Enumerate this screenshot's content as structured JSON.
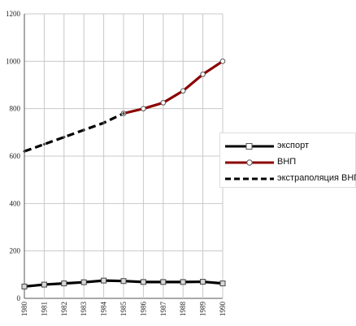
{
  "chart_data": {
    "type": "line",
    "title": "",
    "xlabel": "",
    "ylabel": "",
    "ylim": [
      0,
      1200
    ],
    "y_ticks": [
      0,
      200,
      400,
      600,
      800,
      1000,
      1200
    ],
    "x": [
      "1980",
      "1981",
      "1982",
      "1983",
      "1984",
      "1985",
      "1986",
      "1987",
      "1988",
      "1989",
      "1990"
    ],
    "grid": true,
    "legend_position": "right",
    "series": [
      {
        "name": "экспорт",
        "color": "#000000",
        "style": "solid",
        "marker": "square",
        "values": [
          50,
          58,
          63,
          68,
          75,
          73,
          69,
          69,
          69,
          70,
          63
        ]
      },
      {
        "name": "ВНП",
        "color": "#8b0000",
        "style": "solid",
        "marker": "circle",
        "values": [
          null,
          null,
          null,
          null,
          null,
          780,
          800,
          825,
          875,
          945,
          1000
        ]
      },
      {
        "name": "экстраполяция  ВНП",
        "color": "#000000",
        "style": "dashed",
        "marker": "diamond",
        "values": [
          620,
          650,
          680,
          710,
          740,
          780,
          null,
          null,
          null,
          null,
          null
        ]
      }
    ]
  }
}
